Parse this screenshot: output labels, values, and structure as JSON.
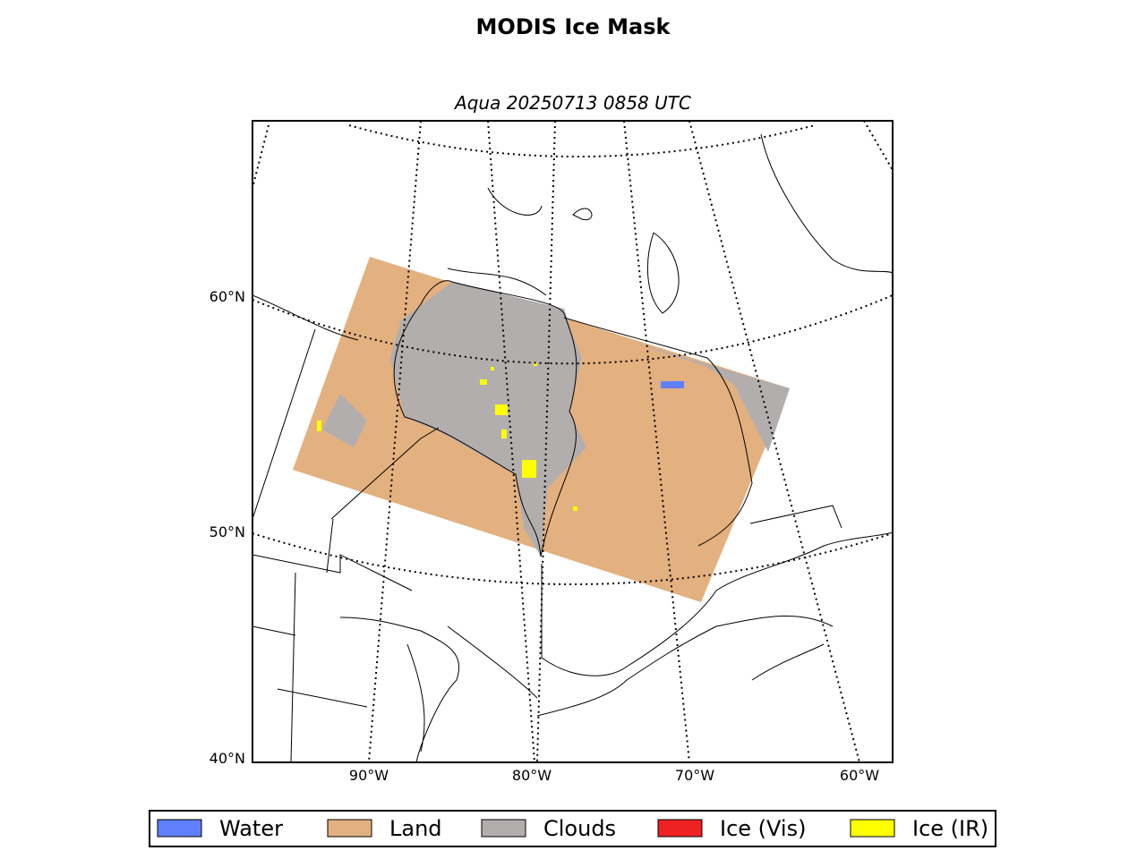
{
  "title": "MODIS Ice Mask",
  "subtitle": "Aqua 20250713 0858 UTC",
  "lat_labels": [
    "60°N",
    "50°N",
    "40°N"
  ],
  "lon_labels": [
    "90°W",
    "80°W",
    "70°W",
    "60°W"
  ],
  "legend": [
    {
      "label": "Water",
      "color": "#6080ff"
    },
    {
      "label": "Land",
      "color": "#e3b07f"
    },
    {
      "label": "Clouds",
      "color": "#b3aeae"
    },
    {
      "label": "Ice (Vis)",
      "color": "#ee2222"
    },
    {
      "label": "Ice (IR)",
      "color": "#ffff00"
    }
  ]
}
